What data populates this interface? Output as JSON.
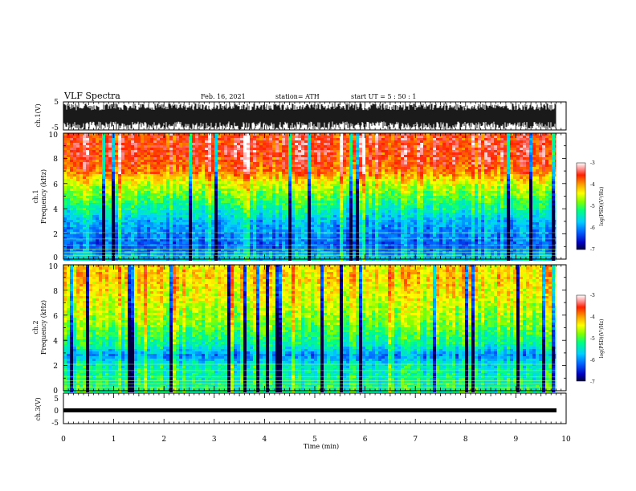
{
  "header": {
    "title": "VLF Spectra",
    "date": "Feb. 16, 2021",
    "station": "station= ATH",
    "start": "start UT =  5 : 50 : 1"
  },
  "chart_data": [
    {
      "type": "line",
      "panel": "ch1-waveform",
      "ylabel": "ch.1(V)",
      "ylim": [
        -5,
        5
      ],
      "yticks": [
        "5",
        "-5"
      ],
      "xlim": [
        0,
        10
      ],
      "data_extent_min": 9.8
    },
    {
      "type": "heatmap",
      "panel": "ch1-spectrogram",
      "ylabel_channel": "ch.1",
      "ylabel": "Frequency (kHz)",
      "ylim": [
        0,
        10
      ],
      "yticks": [
        "0",
        "2",
        "4",
        "6",
        "8",
        "10"
      ],
      "xlim": [
        0,
        10
      ],
      "colorbar": {
        "label": "log(PSD)(V²/Hz)",
        "ticks": [
          "-3",
          "-4",
          "-5",
          "-6",
          "-7"
        ],
        "range": [
          -7,
          -3
        ]
      },
      "colorscale": [
        "#000080",
        "#0000ff",
        "#00c8ff",
        "#00ff80",
        "#80ff00",
        "#ffff00",
        "#ffa000",
        "#ff2000",
        "#ffffff"
      ],
      "profile_log_psd": [
        {
          "f_khz": 0.0,
          "value": -5.6
        },
        {
          "f_khz": 1.0,
          "value": -6.2
        },
        {
          "f_khz": 2.0,
          "value": -6.0
        },
        {
          "f_khz": 3.0,
          "value": -5.8
        },
        {
          "f_khz": 4.0,
          "value": -5.3
        },
        {
          "f_khz": 5.0,
          "value": -4.9
        },
        {
          "f_khz": 6.0,
          "value": -4.5
        },
        {
          "f_khz": 7.0,
          "value": -3.8
        },
        {
          "f_khz": 8.5,
          "value": -3.5
        },
        {
          "f_khz": 10.0,
          "value": -3.6
        }
      ]
    },
    {
      "type": "heatmap",
      "panel": "ch2-spectrogram",
      "ylabel_channel": "ch.2",
      "ylabel": "Frequency (kHz)",
      "ylim": [
        0,
        10
      ],
      "yticks": [
        "0",
        "2",
        "4",
        "6",
        "8",
        "10"
      ],
      "xlim": [
        0,
        10
      ],
      "colorbar": {
        "label": "log(PSD)(V²/Hz)",
        "ticks": [
          "-3",
          "-4",
          "-5",
          "-6",
          "-7"
        ],
        "range": [
          -7,
          -3
        ]
      },
      "colorscale": [
        "#000080",
        "#0000ff",
        "#00c8ff",
        "#00ff80",
        "#80ff00",
        "#ffff00",
        "#ffa000",
        "#ff2000",
        "#ffffff"
      ],
      "profile_log_psd": [
        {
          "f_khz": 0.0,
          "value": -5.2
        },
        {
          "f_khz": 1.0,
          "value": -5.3
        },
        {
          "f_khz": 2.0,
          "value": -5.4
        },
        {
          "f_khz": 2.8,
          "value": -6.0
        },
        {
          "f_khz": 3.5,
          "value": -5.4
        },
        {
          "f_khz": 5.0,
          "value": -4.9
        },
        {
          "f_khz": 7.0,
          "value": -4.5
        },
        {
          "f_khz": 9.0,
          "value": -4.2
        },
        {
          "f_khz": 10.0,
          "value": -4.3
        }
      ]
    },
    {
      "type": "line",
      "panel": "ch3-waveform",
      "ylabel": "ch.3(V)",
      "ylim": [
        -5,
        5
      ],
      "yticks": [
        "5",
        "0",
        "-5"
      ],
      "xlim": [
        0,
        10
      ],
      "xlabel": "Time (min)",
      "xticks": [
        "0",
        "1",
        "2",
        "3",
        "4",
        "5",
        "6",
        "7",
        "8",
        "9",
        "10"
      ],
      "level_v": 0
    }
  ]
}
